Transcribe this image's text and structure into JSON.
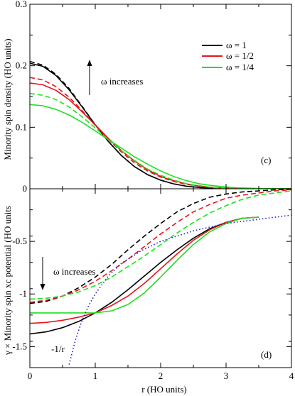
{
  "chart_data": [
    {
      "type": "line",
      "panel_label": "(c)",
      "ylabel": "Minority spin density (HO units)",
      "xlabel": "",
      "xlim": [
        0,
        4
      ],
      "ylim": [
        0,
        0.3
      ],
      "x_ticks": [
        0,
        1,
        2,
        3,
        4
      ],
      "y_ticks": [
        0,
        0.1,
        0.2,
        0.3
      ],
      "y_tick_labels": [
        "0",
        "0.1",
        "0.2",
        "0.3"
      ],
      "annotation": "ω increases",
      "legend": {
        "placement": "top-right",
        "entries": [
          {
            "label": "ω = 1",
            "color": "#000000"
          },
          {
            "label": "ω = 1/2",
            "color": "#e8141c"
          },
          {
            "label": "ω = 1/4",
            "color": "#1ee01e"
          }
        ]
      },
      "series": [
        {
          "name": "ω = 1",
          "dash": "solid",
          "color": "#000000",
          "x": [
            0,
            0.2,
            0.4,
            0.6,
            0.8,
            1.0,
            1.2,
            1.4,
            1.6,
            1.8,
            2.0,
            2.2,
            2.4,
            2.6,
            2.8,
            3.0,
            3.2,
            3.5,
            4.0
          ],
          "y": [
            0.204,
            0.199,
            0.184,
            0.161,
            0.133,
            0.104,
            0.077,
            0.054,
            0.036,
            0.023,
            0.014,
            0.008,
            0.004,
            0.002,
            0.001,
            0.0005,
            0.0002,
            0.0,
            0.0
          ]
        },
        {
          "name": "",
          "dash": "dashed",
          "color": "#000000",
          "x": [
            0,
            0.2,
            0.4,
            0.6,
            0.8,
            1.0,
            1.2,
            1.4,
            1.6,
            1.8,
            2.0,
            2.2,
            2.4,
            2.6,
            2.8,
            3.0,
            3.2,
            3.5,
            4.0
          ],
          "y": [
            0.207,
            0.201,
            0.186,
            0.163,
            0.134,
            0.104,
            0.077,
            0.054,
            0.036,
            0.023,
            0.014,
            0.008,
            0.004,
            0.002,
            0.001,
            0.0005,
            0.0002,
            0.0,
            0.0
          ]
        },
        {
          "name": "ω = 1/2",
          "dash": "solid",
          "color": "#e8141c",
          "x": [
            0,
            0.2,
            0.4,
            0.6,
            0.8,
            1.0,
            1.2,
            1.4,
            1.6,
            1.8,
            2.0,
            2.2,
            2.4,
            2.6,
            2.8,
            3.0,
            3.2,
            3.5,
            4.0
          ],
          "y": [
            0.172,
            0.169,
            0.16,
            0.145,
            0.125,
            0.104,
            0.082,
            0.062,
            0.045,
            0.031,
            0.02,
            0.013,
            0.008,
            0.004,
            0.002,
            0.001,
            0.0005,
            0.0,
            0.0
          ]
        },
        {
          "name": "",
          "dash": "dashed",
          "color": "#e8141c",
          "x": [
            0,
            0.2,
            0.4,
            0.6,
            0.8,
            1.0,
            1.2,
            1.4,
            1.6,
            1.8,
            2.0,
            2.2,
            2.4,
            2.6,
            2.8,
            3.0,
            3.2,
            3.5,
            4.0
          ],
          "y": [
            0.181,
            0.177,
            0.166,
            0.149,
            0.127,
            0.103,
            0.08,
            0.06,
            0.042,
            0.029,
            0.019,
            0.012,
            0.007,
            0.004,
            0.002,
            0.001,
            0.0005,
            0.0,
            0.0
          ]
        },
        {
          "name": "ω = 1/4",
          "dash": "solid",
          "color": "#1ee01e",
          "x": [
            0,
            0.2,
            0.4,
            0.6,
            0.8,
            1.0,
            1.2,
            1.4,
            1.6,
            1.8,
            2.0,
            2.2,
            2.4,
            2.6,
            2.8,
            3.0,
            3.2,
            3.5,
            4.0
          ],
          "y": [
            0.137,
            0.135,
            0.129,
            0.12,
            0.108,
            0.094,
            0.08,
            0.066,
            0.052,
            0.04,
            0.029,
            0.02,
            0.013,
            0.008,
            0.005,
            0.003,
            0.0015,
            0.0005,
            0.0
          ]
        },
        {
          "name": "",
          "dash": "dashed",
          "color": "#1ee01e",
          "x": [
            0,
            0.2,
            0.4,
            0.6,
            0.8,
            1.0,
            1.2,
            1.4,
            1.6,
            1.8,
            2.0,
            2.2,
            2.4,
            2.6,
            2.8,
            3.0,
            3.2,
            3.5,
            4.0
          ],
          "y": [
            0.155,
            0.152,
            0.145,
            0.133,
            0.117,
            0.099,
            0.08,
            0.062,
            0.046,
            0.032,
            0.022,
            0.014,
            0.008,
            0.005,
            0.002,
            0.001,
            0.0005,
            0.0,
            0.0
          ]
        }
      ]
    },
    {
      "type": "line",
      "panel_label": "(d)",
      "ylabel": "γ × Minority spin xc potential (HO units",
      "xlabel": "r (HO units)",
      "xlim": [
        0,
        4
      ],
      "ylim": [
        -1.7,
        0
      ],
      "x_ticks": [
        0,
        1,
        2,
        3,
        4
      ],
      "y_ticks": [
        -1.5,
        -1,
        -0.5
      ],
      "y_tick_labels": [
        "-1.5",
        "-1",
        "-0.5"
      ],
      "x_tick_labels": [
        "0",
        "1",
        "2",
        "3",
        "4"
      ],
      "annotation": "ω increases",
      "curve_label": "-1/r",
      "series": [
        {
          "name": "",
          "dash": "solid",
          "color": "#000000",
          "x": [
            0,
            0.25,
            0.5,
            0.75,
            1.0,
            1.25,
            1.5,
            1.75,
            2.0,
            2.25,
            2.5,
            2.75,
            3.0,
            3.25,
            3.5
          ],
          "y": [
            -1.38,
            -1.36,
            -1.32,
            -1.26,
            -1.18,
            -1.08,
            -0.96,
            -0.83,
            -0.7,
            -0.58,
            -0.47,
            -0.38,
            -0.32,
            -0.28,
            -0.27
          ]
        },
        {
          "name": "",
          "dash": "dashed",
          "color": "#000000",
          "x": [
            0,
            0.25,
            0.5,
            0.75,
            1.0,
            1.25,
            1.5,
            1.75,
            2.0,
            2.25,
            2.5,
            2.75,
            3.0,
            3.25,
            3.5,
            3.75,
            4.0
          ],
          "y": [
            -1.09,
            -1.07,
            -1.02,
            -0.94,
            -0.84,
            -0.72,
            -0.58,
            -0.45,
            -0.33,
            -0.22,
            -0.14,
            -0.08,
            -0.05,
            -0.03,
            -0.02,
            -0.01,
            -0.005
          ]
        },
        {
          "name": "",
          "dash": "solid",
          "color": "#e8141c",
          "x": [
            0,
            0.25,
            0.5,
            0.75,
            1.0,
            1.25,
            1.5,
            1.75,
            2.0,
            2.25,
            2.5,
            2.75,
            3.0,
            3.25,
            3.5
          ],
          "y": [
            -1.28,
            -1.27,
            -1.25,
            -1.22,
            -1.18,
            -1.11,
            -1.02,
            -0.9,
            -0.76,
            -0.62,
            -0.49,
            -0.39,
            -0.32,
            -0.28,
            -0.27
          ]
        },
        {
          "name": "",
          "dash": "dashed",
          "color": "#e8141c",
          "x": [
            0,
            0.25,
            0.5,
            0.75,
            1.0,
            1.25,
            1.5,
            1.75,
            2.0,
            2.25,
            2.5,
            2.75,
            3.0,
            3.25,
            3.5,
            3.75,
            4.0
          ],
          "y": [
            -1.08,
            -1.06,
            -1.02,
            -0.96,
            -0.88,
            -0.78,
            -0.67,
            -0.55,
            -0.43,
            -0.32,
            -0.22,
            -0.15,
            -0.09,
            -0.06,
            -0.04,
            -0.02,
            -0.01
          ]
        },
        {
          "name": "",
          "dash": "solid",
          "color": "#1ee01e",
          "x": [
            0,
            0.25,
            0.5,
            0.75,
            1.0,
            1.25,
            1.5,
            1.75,
            2.0,
            2.25,
            2.5,
            2.75,
            3.0,
            3.25,
            3.5
          ],
          "y": [
            -1.18,
            -1.18,
            -1.18,
            -1.18,
            -1.18,
            -1.16,
            -1.1,
            -0.99,
            -0.84,
            -0.68,
            -0.53,
            -0.41,
            -0.33,
            -0.28,
            -0.27
          ]
        },
        {
          "name": "",
          "dash": "dashed",
          "color": "#1ee01e",
          "x": [
            0,
            0.25,
            0.5,
            0.75,
            1.0,
            1.25,
            1.5,
            1.75,
            2.0,
            2.25,
            2.5,
            2.75,
            3.0,
            3.25,
            3.5,
            3.75,
            4.0
          ],
          "y": [
            -1.05,
            -1.04,
            -1.02,
            -0.98,
            -0.92,
            -0.84,
            -0.74,
            -0.64,
            -0.53,
            -0.42,
            -0.32,
            -0.23,
            -0.16,
            -0.1,
            -0.06,
            -0.04,
            -0.02
          ]
        },
        {
          "name": "",
          "dash": "dotted",
          "color": "#1a1acc",
          "x": [
            0.6,
            0.7,
            0.8,
            0.9,
            1.0,
            1.2,
            1.4,
            1.7,
            2.0,
            2.5,
            3.0,
            3.5,
            4.0
          ],
          "y": [
            -1.67,
            -1.43,
            -1.25,
            -1.11,
            -1.0,
            -0.83,
            -0.71,
            -0.59,
            -0.5,
            -0.4,
            -0.33,
            -0.29,
            -0.25
          ]
        }
      ]
    }
  ]
}
